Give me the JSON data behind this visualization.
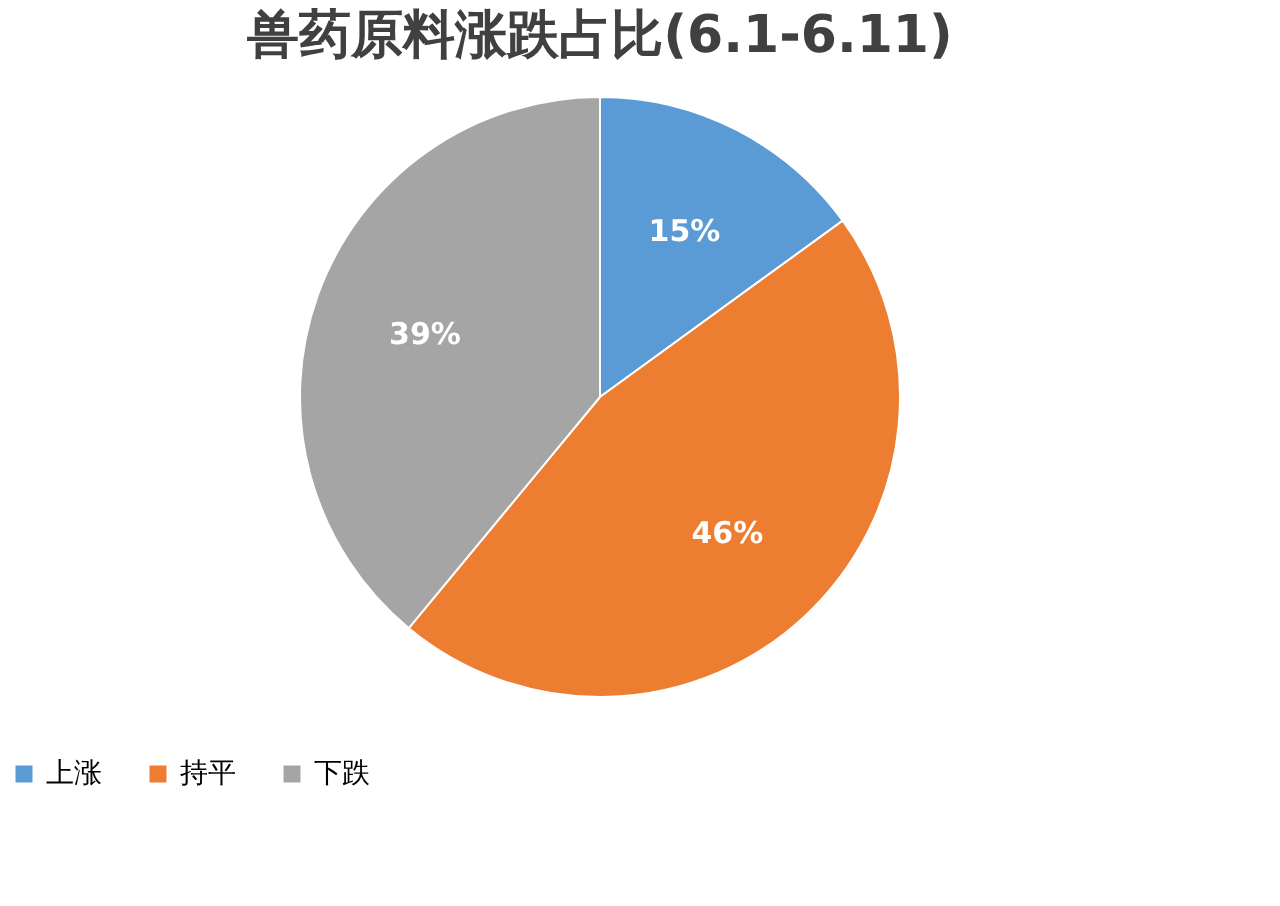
{
  "chart_data": {
    "type": "pie",
    "title": "兽药原料涨跌占比(6.1-6.11)",
    "categories": [
      "上涨",
      "持平",
      "下跌"
    ],
    "values": [
      15,
      46,
      39
    ],
    "colors": [
      "#5b9bd5",
      "#ed7d31",
      "#a5a5a5"
    ],
    "value_labels": [
      "15%",
      "46%",
      "39%"
    ],
    "legend": "bottom"
  }
}
